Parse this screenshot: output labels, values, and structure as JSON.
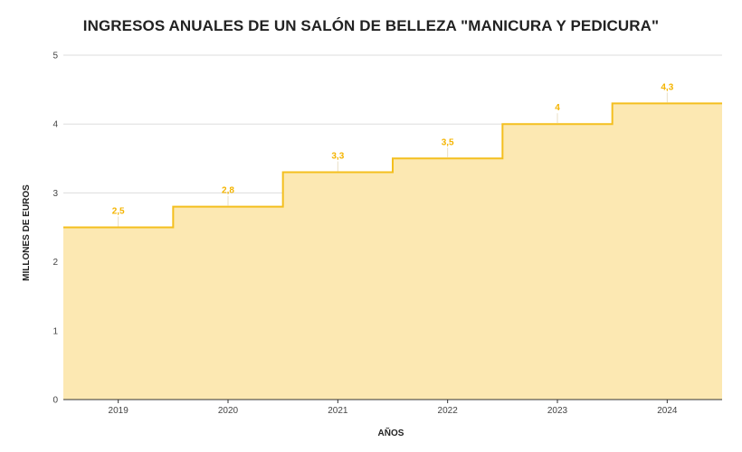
{
  "chart_data": {
    "type": "area",
    "step": true,
    "title": "INGRESOS ANUALES DE UN SALÓN DE BELLEZA \"MANICURA Y PEDICURA\"",
    "xlabel": "AÑOS",
    "ylabel": "MILLONES DE EUROS",
    "categories": [
      "2019",
      "2020",
      "2021",
      "2022",
      "2023",
      "2024"
    ],
    "series": [
      {
        "values": [
          2.5,
          2.8,
          3.3,
          3.5,
          4,
          4.3
        ],
        "data_labels": [
          "2,5",
          "2,8",
          "3,3",
          "3,5",
          "4",
          "4,3"
        ]
      }
    ],
    "ylim": [
      0,
      5
    ],
    "yticks": [
      "0",
      "1",
      "2",
      "3",
      "4",
      "5"
    ],
    "grid": true,
    "legend": "none",
    "colors": {
      "line": "#F4BF1E",
      "fill": "#FCE8B2",
      "labels": "#F4B400",
      "grid": "#DDDDDD",
      "axis": "#333333"
    }
  }
}
